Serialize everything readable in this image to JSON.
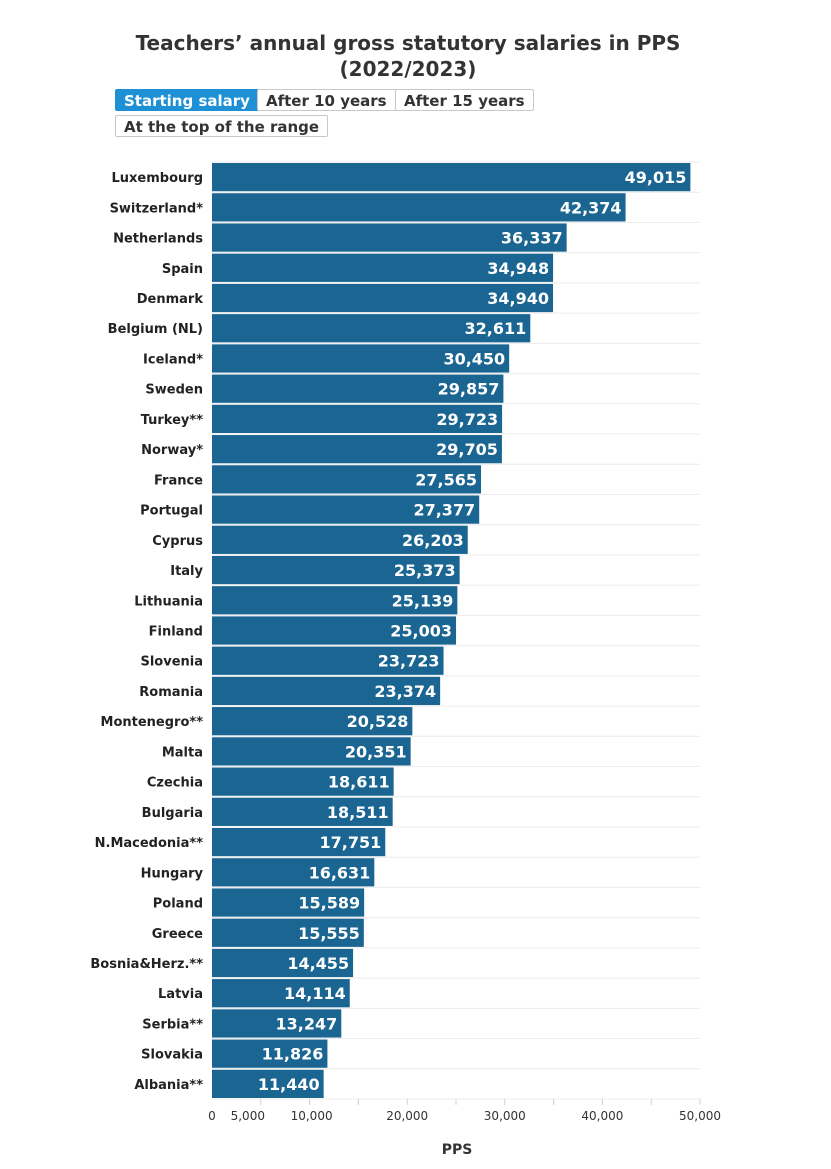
{
  "tabs": [
    {
      "label": "Starting salary",
      "active": true
    },
    {
      "label": "After 10 years",
      "active": false
    },
    {
      "label": "After 15 years",
      "active": false
    },
    {
      "label": "At the top of the range",
      "active": false
    }
  ],
  "chart_data": {
    "type": "bar",
    "orientation": "horizontal",
    "title": "Teachers’ annual gross statutory salaries in PPS",
    "subtitle": "(2022/2023)",
    "xlabel": "PPS",
    "ylabel": "",
    "xlim": [
      0,
      50000
    ],
    "x_ticks": [
      0,
      5000,
      10000,
      20000,
      30000,
      40000,
      50000
    ],
    "x_tick_labels": [
      "0",
      "5,000",
      "10,000",
      "20,000",
      "30,000",
      "40,000",
      "50,000"
    ],
    "grid": true,
    "bar_color": "#1a6591",
    "categories": [
      "Luxembourg",
      "Switzerland*",
      "Netherlands",
      "Spain",
      "Denmark",
      "Belgium (NL)",
      "Iceland*",
      "Sweden",
      "Turkey**",
      "Norway*",
      "France",
      "Portugal",
      "Cyprus",
      "Italy",
      "Lithuania",
      "Finland",
      "Slovenia",
      "Romania",
      "Montenegro**",
      "Malta",
      "Czechia",
      "Bulgaria",
      "N.Macedonia**",
      "Hungary",
      "Poland",
      "Greece",
      "Bosnia&Herz.**",
      "Latvia",
      "Serbia**",
      "Slovakia",
      "Albania**"
    ],
    "values": [
      49015,
      42374,
      36337,
      34948,
      34940,
      32611,
      30450,
      29857,
      29723,
      29705,
      27565,
      27377,
      26203,
      25373,
      25139,
      25003,
      23723,
      23374,
      20528,
      20351,
      18611,
      18511,
      17751,
      16631,
      15589,
      15555,
      14455,
      14114,
      13247,
      11826,
      11440
    ],
    "value_labels": [
      "49,015",
      "42,374",
      "36,337",
      "34,948",
      "34,940",
      "32,611",
      "30,450",
      "29,857",
      "29,723",
      "29,705",
      "27,565",
      "27,377",
      "26,203",
      "25,373",
      "25,139",
      "25,003",
      "23,723",
      "23,374",
      "20,528",
      "20,351",
      "18,611",
      "18,511",
      "17,751",
      "16,631",
      "15,589",
      "15,555",
      "14,455",
      "14,114",
      "13,247",
      "11,826",
      "11,440"
    ]
  }
}
